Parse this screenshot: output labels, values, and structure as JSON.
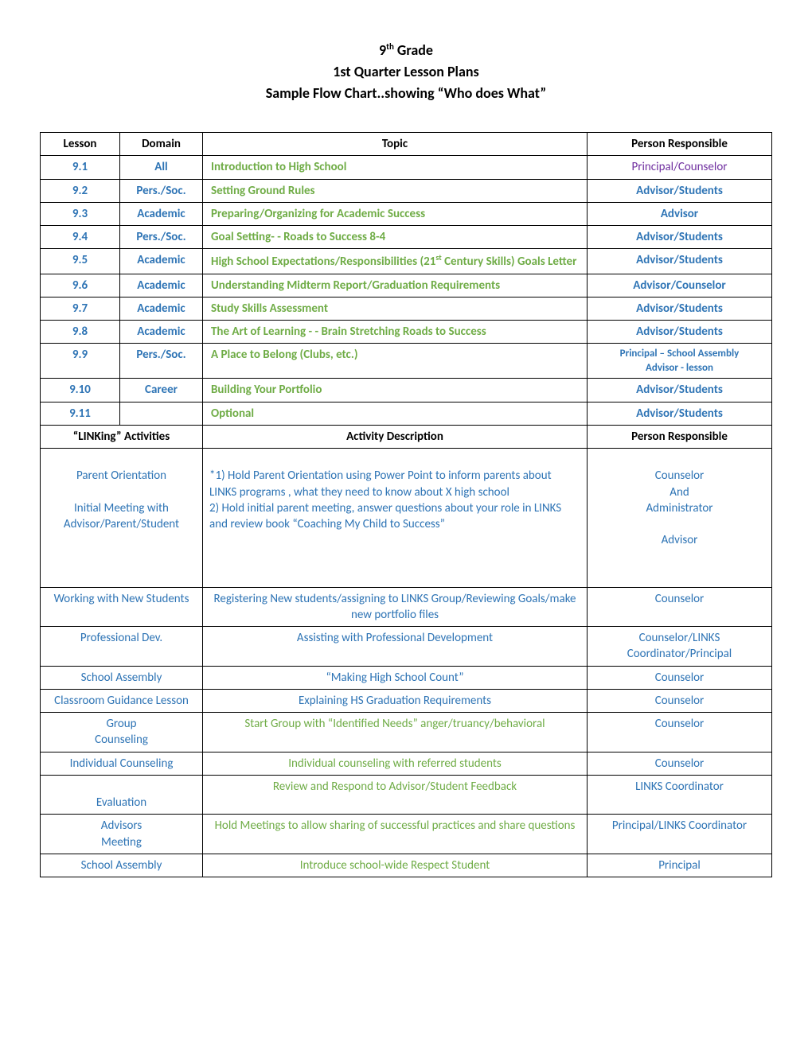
{
  "title": {
    "line1_a": "9",
    "line1_sup": "th",
    "line1_b": " Grade",
    "line2": "1st Quarter Lesson Plans",
    "line3": "Sample Flow Chart..showing “Who does What”"
  },
  "colors": {
    "blue": "#2e74b5",
    "green": "#6fac46",
    "purple": "#7030a0",
    "black": "#000000",
    "border": "#000000"
  },
  "columns": [
    "Lesson",
    "Domain",
    "Topic",
    "Person Responsible"
  ],
  "lessons": [
    {
      "lesson": "9.1",
      "domain": "All",
      "topic": "Introduction to High School",
      "resp": "Principal/Counselor",
      "resp_color": "purple"
    },
    {
      "lesson": "9.2",
      "domain": "Pers./Soc.",
      "topic": "Setting Ground Rules",
      "resp": "Advisor/Students"
    },
    {
      "lesson": "9.3",
      "domain": "Academic",
      "topic": "Preparing/Organizing for Academic Success",
      "resp": "Advisor"
    },
    {
      "lesson": "9.4",
      "domain": "Pers./Soc.",
      "topic": "Goal Setting- - Roads to Success 8-4",
      "resp": "Advisor/Students"
    },
    {
      "lesson": "9.5",
      "domain": "Academic",
      "topic_html": "High School Expectations/Responsibilities  (21<sup class='st'>st</sup> Century Skills) Goals Letter",
      "resp": "Advisor/Students"
    },
    {
      "lesson": "9.6",
      "domain": "Academic",
      "topic": "Understanding Midterm Report/Graduation Requirements",
      "resp": "Advisor/Counselor"
    },
    {
      "lesson": "9.7",
      "domain": "Academic",
      "topic": "Study Skills Assessment",
      "resp": "Advisor/Students"
    },
    {
      "lesson": "9.8",
      "domain": "Academic",
      "topic": "The Art of Learning - - Brain Stretching Roads to Success",
      "resp": "Advisor/Students"
    },
    {
      "lesson": "9.9",
      "domain": "Pers./Soc.",
      "topic": "A Place to Belong (Clubs, etc.)",
      "resp_html": "Principal – School Assembly<br>Advisor - lesson",
      "resp_small": true
    },
    {
      "lesson": "9.10",
      "domain": "Career",
      "topic": "Building Your Portfolio",
      "resp": "Advisor/Students"
    },
    {
      "lesson": "9.11",
      "domain": "",
      "topic": "Optional",
      "resp": "Advisor/Students"
    }
  ],
  "section2_headers": [
    "“LINKing” Activities",
    "Activity Description",
    "Person Responsible"
  ],
  "linking": [
    {
      "activity_html": "<br>Parent Orientation<br><br>Initial Meeting with Advisor/Parent/Student",
      "desc_html": "<br>*1) Hold Parent Orientation using Power Point to inform parents about LINKS programs , what they need to know about  X high school<br>2) Hold initial parent meeting, answer questions about your role in LINKS and review book “Coaching My Child to Success”",
      "resp_html": "<br>Counselor<br>And<br>Administrator<br><br>Advisor",
      "tall": true
    },
    {
      "activity_html": "Working with New Students",
      "desc_html": "Registering New students/assigning to LINKS Group/Reviewing Goals/make new portfolio files",
      "resp_html": "Counselor"
    },
    {
      "activity_html": "Professional Dev.",
      "desc_html": "Assisting with Professional Development",
      "resp_html": "Counselor/LINKS Coordinator/Principal"
    },
    {
      "activity_html": "School Assembly",
      "desc_html": "“Making High School Count”",
      "resp_html": "Counselor"
    },
    {
      "activity_html": "Classroom Guidance Lesson",
      "desc_html": "Explaining HS Graduation Requirements",
      "resp_html": "Counselor"
    },
    {
      "activity_html": "Group<br>Counseling",
      "desc_html": "Start Group with “Identified Needs” anger/truancy/behavioral",
      "resp_html": "Counselor",
      "desc_green": true
    },
    {
      "activity_html": "Individual Counseling",
      "desc_html": "Individual counseling with referred students",
      "resp_html": "Counselor",
      "desc_green": true
    },
    {
      "activity_html": "<br>Evaluation",
      "desc_html": "Review and Respond to Advisor/Student Feedback",
      "resp_html": "LINKS Coordinator",
      "desc_green": true
    },
    {
      "activity_html": "Advisors<br>Meeting",
      "desc_html": "Hold Meetings to allow sharing of successful practices and share questions",
      "resp_html": "Principal/LINKS Coordinator",
      "desc_green": true
    },
    {
      "activity_html": "School Assembly",
      "desc_html": "Introduce school-wide Respect Student",
      "resp_html": "Principal",
      "desc_green": true
    }
  ]
}
